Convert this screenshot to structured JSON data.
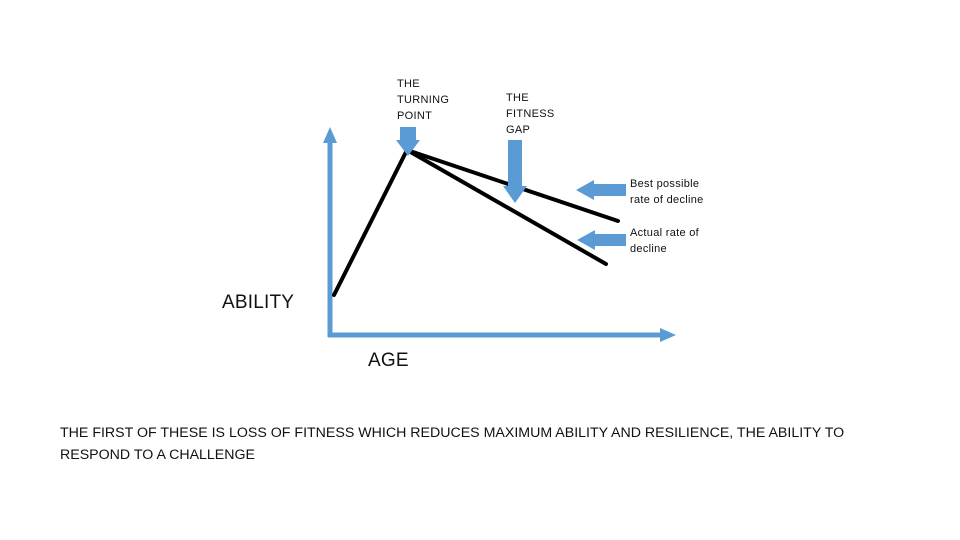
{
  "labels": {
    "turning_point": "THE\nTURNING\nPOINT",
    "fitness_gap": "THE\nFITNESS\nGAP",
    "best_decline": "Best possible\nrate of decline",
    "actual_decline": "Actual rate of\ndecline",
    "y_axis": "ABILITY",
    "x_axis": "AGE"
  },
  "caption": "THE FIRST OF THESE IS LOSS OF FITNESS WHICH REDUCES MAXIMUM ABILITY AND RESILIENCE, THE ABILITY TO RESPOND TO A CHALLENGE",
  "colors": {
    "axis": "#5b9bd5",
    "arrow": "#5b9bd5",
    "curve": "#000000",
    "text": "#111111"
  }
}
